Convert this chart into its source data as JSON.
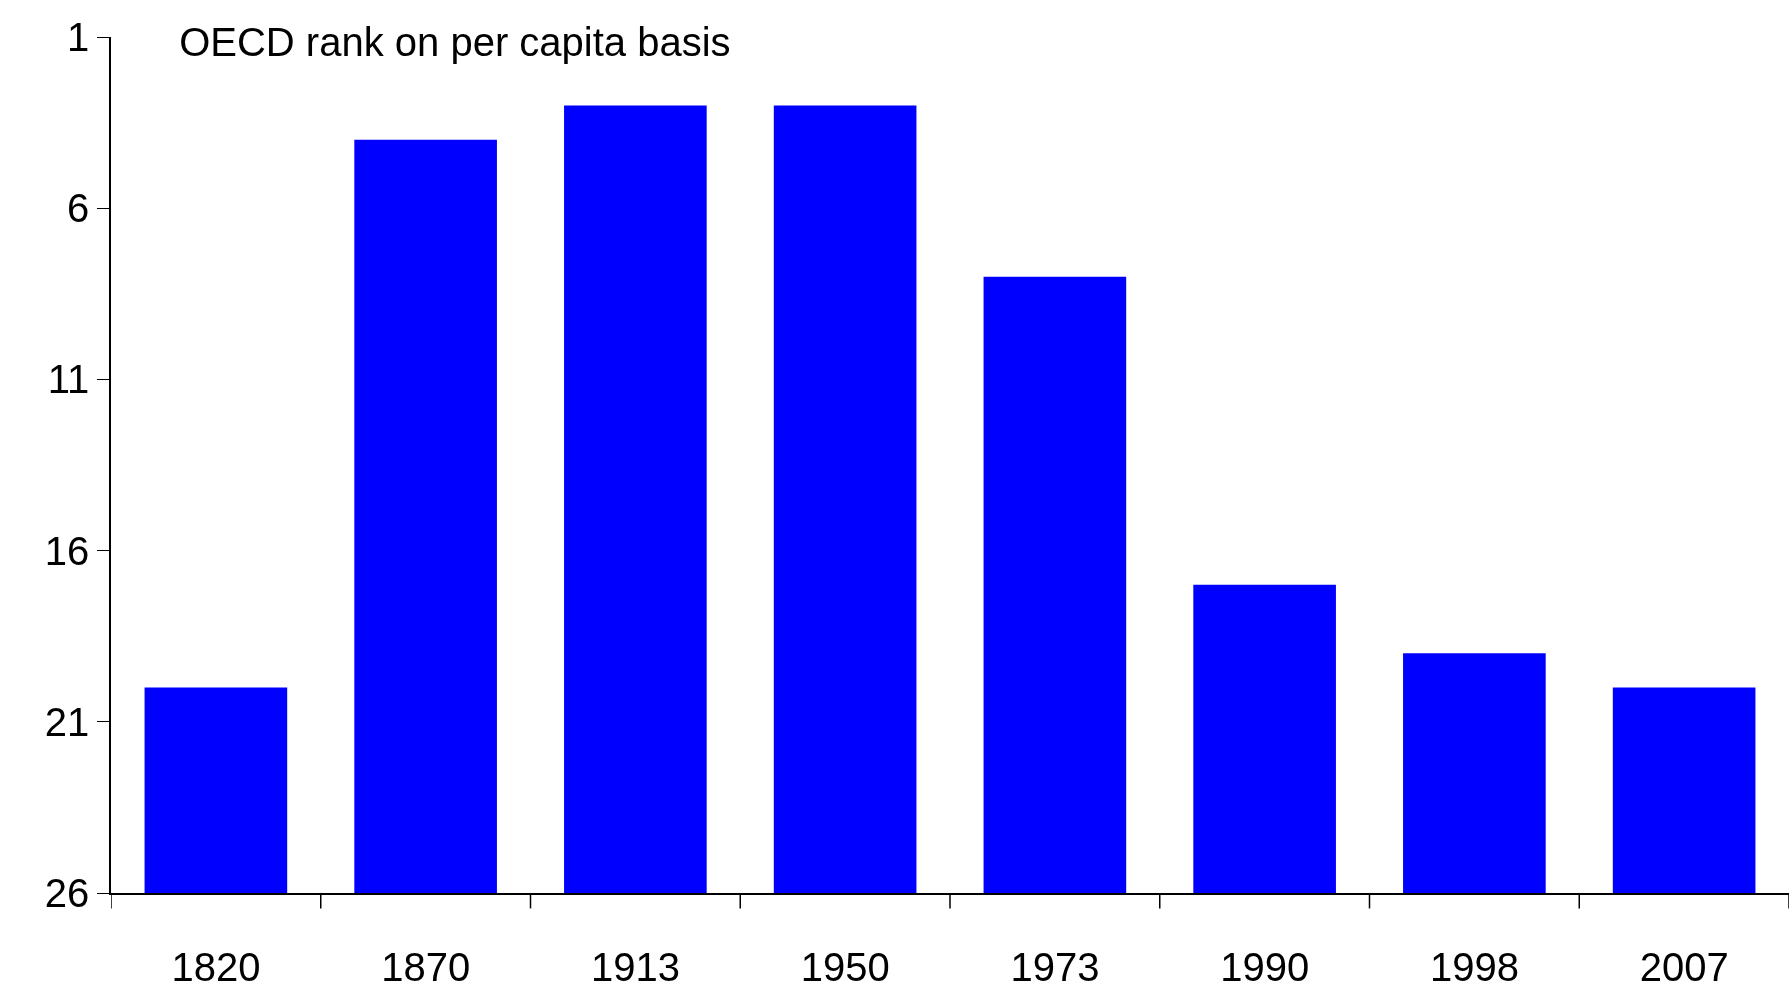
{
  "chart_data": {
    "type": "bar",
    "title": "OECD rank on per capita basis",
    "categories": [
      "1820",
      "1870",
      "1913",
      "1950",
      "1973",
      "1990",
      "1998",
      "2007"
    ],
    "values": [
      -6,
      -22,
      -23,
      -23,
      -18,
      -9,
      -7,
      -6
    ],
    "base": [
      26,
      26,
      26,
      26,
      26,
      26,
      26,
      26
    ],
    "color": "#0000ff",
    "ylim": [
      26,
      1
    ],
    "yticks": [
      1,
      6,
      11,
      16,
      21,
      26
    ],
    "legend": false
  }
}
